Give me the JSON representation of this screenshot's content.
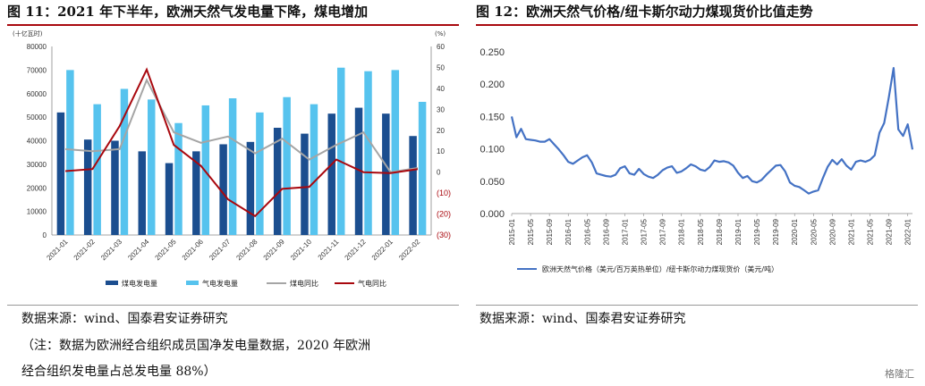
{
  "figures": {
    "left_title": "图 11：2021 年下半年，欧洲天然气发电量下降，煤电增加",
    "right_title": "图 12：欧洲天然气价格/纽卡斯尔动力煤现货价比值走势"
  },
  "chart_data": [
    {
      "type": "bar",
      "title": "图 11：2021 年下半年，欧洲天然气发电量下降，煤电增加",
      "ylabel_left": "(十亿瓦时)",
      "ylabel_right": "(%)",
      "ylim_left": [
        0,
        80000
      ],
      "ylim_right": [
        -30,
        60
      ],
      "left_ticks": [
        "80000",
        "70000",
        "60000",
        "50000",
        "40000",
        "30000",
        "20000",
        "10000",
        "0"
      ],
      "right_ticks": [
        "60",
        "50",
        "40",
        "30",
        "20",
        "10",
        "0",
        "(10)",
        "(20)",
        "(30)"
      ],
      "categories": [
        "2021-01",
        "2021-02",
        "2021-03",
        "2021-04",
        "2021-05",
        "2021-06",
        "2021-07",
        "2021-08",
        "2021-09",
        "2021-10",
        "2021-11",
        "2021-12",
        "2022-01",
        "2022-02"
      ],
      "series": [
        {
          "name": "煤电发电量",
          "kind": "bar",
          "axis": "left",
          "color": "#1b4e8f",
          "values": [
            52000,
            40500,
            40000,
            35500,
            30500,
            35500,
            38500,
            39500,
            45500,
            43000,
            51500,
            54000,
            51500,
            42000
          ]
        },
        {
          "name": "气电发电量",
          "kind": "bar",
          "axis": "left",
          "color": "#56c3ee",
          "values": [
            70000,
            55500,
            62000,
            57500,
            47500,
            55000,
            58000,
            52000,
            58500,
            55500,
            71000,
            69500,
            70000,
            56500
          ]
        },
        {
          "name": "煤电同比",
          "kind": "line",
          "axis": "right",
          "color": "#a5a5a5",
          "values": [
            11,
            10,
            11,
            44,
            19,
            14,
            17,
            9,
            16,
            6,
            13,
            19,
            0,
            2
          ]
        },
        {
          "name": "气电同比",
          "kind": "line",
          "axis": "right",
          "color": "#a9080e",
          "values": [
            0.5,
            1.5,
            22,
            49,
            13,
            3,
            -13,
            -21,
            -8,
            -7,
            6,
            0,
            -0.5,
            1.5
          ]
        }
      ],
      "legend_position": "bottom"
    },
    {
      "type": "line",
      "title": "图 12：欧洲天然气价格/纽卡斯尔动力煤现货价比值走势",
      "ylim": [
        0,
        0.25
      ],
      "y_ticks": [
        "0.250",
        "0.200",
        "0.150",
        "0.100",
        "0.050",
        "0.000"
      ],
      "x_ticks": [
        "2015-01",
        "2015-05",
        "2015-09",
        "2016-01",
        "2016-05",
        "2016-09",
        "2017-01",
        "2017-05",
        "2017-09",
        "2018-01",
        "2018-05",
        "2018-09",
        "2019-01",
        "2019-05",
        "2019-09",
        "2020-01",
        "2020-05",
        "2020-09",
        "2021-01",
        "2021-05",
        "2021-09",
        "2022-01"
      ],
      "series": [
        {
          "name": "欧洲天然气价格（美元/百万英热单位）/纽卡斯尔动力煤现货价（美元/吨）",
          "color": "#4472c4",
          "start": "2015-01",
          "frequency": "monthly",
          "values": [
            0.15,
            0.118,
            0.131,
            0.115,
            0.114,
            0.113,
            0.111,
            0.111,
            0.115,
            0.107,
            0.099,
            0.09,
            0.08,
            0.077,
            0.082,
            0.087,
            0.09,
            0.079,
            0.062,
            0.06,
            0.058,
            0.057,
            0.06,
            0.07,
            0.073,
            0.062,
            0.06,
            0.069,
            0.061,
            0.057,
            0.055,
            0.06,
            0.067,
            0.071,
            0.073,
            0.063,
            0.065,
            0.07,
            0.076,
            0.073,
            0.068,
            0.066,
            0.072,
            0.082,
            0.08,
            0.081,
            0.079,
            0.074,
            0.063,
            0.055,
            0.058,
            0.05,
            0.048,
            0.052,
            0.06,
            0.067,
            0.074,
            0.075,
            0.065,
            0.048,
            0.043,
            0.041,
            0.036,
            0.031,
            0.034,
            0.036,
            0.055,
            0.072,
            0.083,
            0.076,
            0.084,
            0.074,
            0.068,
            0.08,
            0.082,
            0.08,
            0.083,
            0.09,
            0.125,
            0.14,
            0.18,
            0.225,
            0.13,
            0.12,
            0.138,
            0.099
          ]
        }
      ],
      "legend_position": "bottom"
    }
  ],
  "notes": {
    "left_source": "数据来源：wind、国泰君安证券研究",
    "left_note_1": "（注：数据为欧洲经合组织成员国净发电量数据，2020 年欧洲",
    "left_note_2": "经合组织发电量占总发电量 88%）",
    "right_source": "数据来源：wind、国泰君安证券研究"
  },
  "watermark": "格隆汇"
}
